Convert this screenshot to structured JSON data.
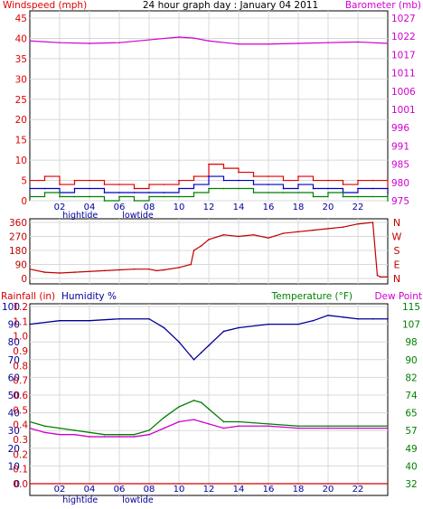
{
  "header": {
    "title": "24 hour graph day : January 04 2011",
    "left_label": "Windspeed (mph)",
    "right_label": "Barometer (mb)"
  },
  "hour_ticks": [
    "02",
    "04",
    "06",
    "08",
    "10",
    "12",
    "14",
    "16",
    "18",
    "20",
    "22"
  ],
  "tide_markers": [
    "hightide",
    "lowtide"
  ],
  "colors": {
    "wind_red": "#e00000",
    "gust_green": "#008000",
    "avg_blue": "#0000c0",
    "barometer_magenta": "#d000d0",
    "direction_red": "#c00000",
    "humidity_blue": "#00009a",
    "temperature_green": "#008000",
    "dewpoint_magenta": "#d000d0",
    "rain_red": "#d00000",
    "grid": "#d8d8d8"
  },
  "chart_data": [
    {
      "type": "line",
      "name": "wind-barometer",
      "y_left_label": "Windspeed (mph)",
      "y_left_ticks": [
        "0",
        "5",
        "10",
        "15",
        "20",
        "25",
        "30",
        "35",
        "40",
        "45"
      ],
      "y_left_range": [
        0,
        45
      ],
      "y_right_label": "Barometer (mb)",
      "y_right_ticks": [
        "975",
        "980",
        "985",
        "991",
        "996",
        "1001",
        "1006",
        "1011",
        "1017",
        "1022",
        "1027"
      ],
      "y_right_range": [
        975,
        1027
      ],
      "x_range_hours": [
        0,
        24
      ],
      "series": [
        {
          "role": "windspeed",
          "hours": [
            0,
            1,
            2,
            3,
            4,
            5,
            6,
            7,
            8,
            9,
            10,
            11,
            12,
            13,
            14,
            15,
            16,
            17,
            18,
            19,
            20,
            21,
            22,
            23,
            24
          ],
          "values": [
            5,
            6,
            4,
            5,
            5,
            4,
            4,
            3,
            4,
            4,
            5,
            6,
            9,
            8,
            7,
            6,
            6,
            5,
            6,
            5,
            5,
            4,
            5,
            5,
            3
          ]
        },
        {
          "role": "wind_average",
          "hours": [
            0,
            1,
            2,
            3,
            4,
            5,
            6,
            7,
            8,
            9,
            10,
            11,
            12,
            13,
            14,
            15,
            16,
            17,
            18,
            19,
            20,
            21,
            22,
            23,
            24
          ],
          "values": [
            3,
            3,
            2,
            3,
            3,
            2,
            2,
            2,
            2,
            2,
            3,
            4,
            6,
            5,
            5,
            4,
            4,
            3,
            4,
            3,
            3,
            2,
            3,
            3,
            2
          ]
        },
        {
          "role": "wind_gust_low",
          "hours": [
            0,
            1,
            2,
            3,
            4,
            5,
            6,
            7,
            8,
            9,
            10,
            11,
            12,
            13,
            14,
            15,
            16,
            17,
            18,
            19,
            20,
            21,
            22,
            23,
            24
          ],
          "values": [
            1,
            2,
            1,
            1,
            1,
            0,
            1,
            0,
            1,
            1,
            1,
            2,
            3,
            3,
            3,
            2,
            2,
            2,
            2,
            1,
            2,
            1,
            1,
            1,
            0
          ]
        },
        {
          "role": "barometer",
          "hours": [
            0,
            2,
            4,
            6,
            8,
            10,
            11,
            12,
            14,
            16,
            18,
            20,
            22,
            24
          ],
          "values": [
            1020.5,
            1020.0,
            1019.8,
            1020.0,
            1020.8,
            1021.6,
            1021.3,
            1020.5,
            1019.6,
            1019.6,
            1019.8,
            1020.0,
            1020.2,
            1019.8
          ]
        }
      ]
    },
    {
      "type": "line",
      "name": "wind-direction",
      "y_left_ticks": [
        "0",
        "90",
        "180",
        "270",
        "360"
      ],
      "y_range": [
        0,
        360
      ],
      "y_right_ticks": [
        "N",
        "W",
        "S",
        "E",
        "N"
      ],
      "x_range_hours": [
        0,
        24
      ],
      "series": [
        {
          "role": "direction",
          "hours": [
            0,
            1,
            2,
            3,
            4,
            5,
            6,
            7,
            8,
            8.5,
            9,
            10,
            10.8,
            11,
            11.5,
            12,
            13,
            14,
            15,
            16,
            17,
            18,
            19,
            20,
            21,
            22,
            23,
            23.3,
            23.5,
            24
          ],
          "values": [
            60,
            40,
            35,
            40,
            45,
            50,
            55,
            60,
            60,
            50,
            55,
            70,
            90,
            180,
            210,
            250,
            280,
            270,
            280,
            260,
            290,
            300,
            310,
            320,
            330,
            350,
            360,
            20,
            10,
            10
          ]
        }
      ]
    },
    {
      "type": "line",
      "name": "rain-humidity-temperature",
      "y_left_label": "Rainfall (in)",
      "y_left_ticks": [
        "0.0",
        "0.1",
        "0.2",
        "0.3",
        "0.4",
        "0.5",
        "0.6",
        "0.7",
        "0.8",
        "0.9",
        "1.0",
        "1.1",
        "1.2"
      ],
      "y_left_range": [
        0,
        1.2
      ],
      "humidity_label": "Humidity %",
      "humidity_ticks": [
        "0",
        "10",
        "20",
        "30",
        "40",
        "50",
        "60",
        "70",
        "80",
        "90",
        "100"
      ],
      "humidity_range": [
        0,
        100
      ],
      "y_right_label": "Temperature (°F)",
      "dewpoint_label": "Dew Point",
      "y_right_ticks": [
        "32",
        "40",
        "49",
        "57",
        "65",
        "74",
        "82",
        "90",
        "98",
        "107",
        "115"
      ],
      "y_right_range": [
        32,
        115
      ],
      "x_range_hours": [
        0,
        24
      ],
      "series": [
        {
          "role": "humidity",
          "hours": [
            0,
            2,
            4,
            6,
            8,
            9,
            10,
            10.8,
            11,
            11.5,
            12,
            13,
            14,
            16,
            18,
            19,
            20,
            21,
            22,
            23,
            24
          ],
          "values": [
            90,
            92,
            92,
            93,
            93,
            88,
            80,
            72,
            70,
            74,
            78,
            86,
            88,
            90,
            90,
            92,
            95,
            94,
            93,
            93,
            93
          ]
        },
        {
          "role": "temperature",
          "hours": [
            0,
            1,
            2,
            3,
            4,
            5,
            6,
            7,
            8,
            9,
            10,
            11,
            11.5,
            12,
            13,
            14,
            16,
            18,
            20,
            22,
            24
          ],
          "values": [
            61,
            59,
            58,
            57,
            56,
            55,
            55,
            55,
            57,
            63,
            68,
            71,
            70,
            67,
            61,
            61,
            60,
            59,
            59,
            59,
            59
          ]
        },
        {
          "role": "dewpoint",
          "hours": [
            0,
            1,
            2,
            3,
            4,
            5,
            6,
            7,
            8,
            9,
            10,
            11,
            11.5,
            12,
            13,
            14,
            16,
            18,
            20,
            22,
            24
          ],
          "values": [
            58,
            56,
            55,
            55,
            54,
            54,
            54,
            54,
            55,
            58,
            61,
            62,
            61,
            60,
            58,
            59,
            59,
            58,
            58,
            58,
            58
          ]
        },
        {
          "role": "rainfall",
          "hours": [
            0,
            24
          ],
          "values": [
            0.0,
            0.0
          ]
        }
      ]
    }
  ]
}
